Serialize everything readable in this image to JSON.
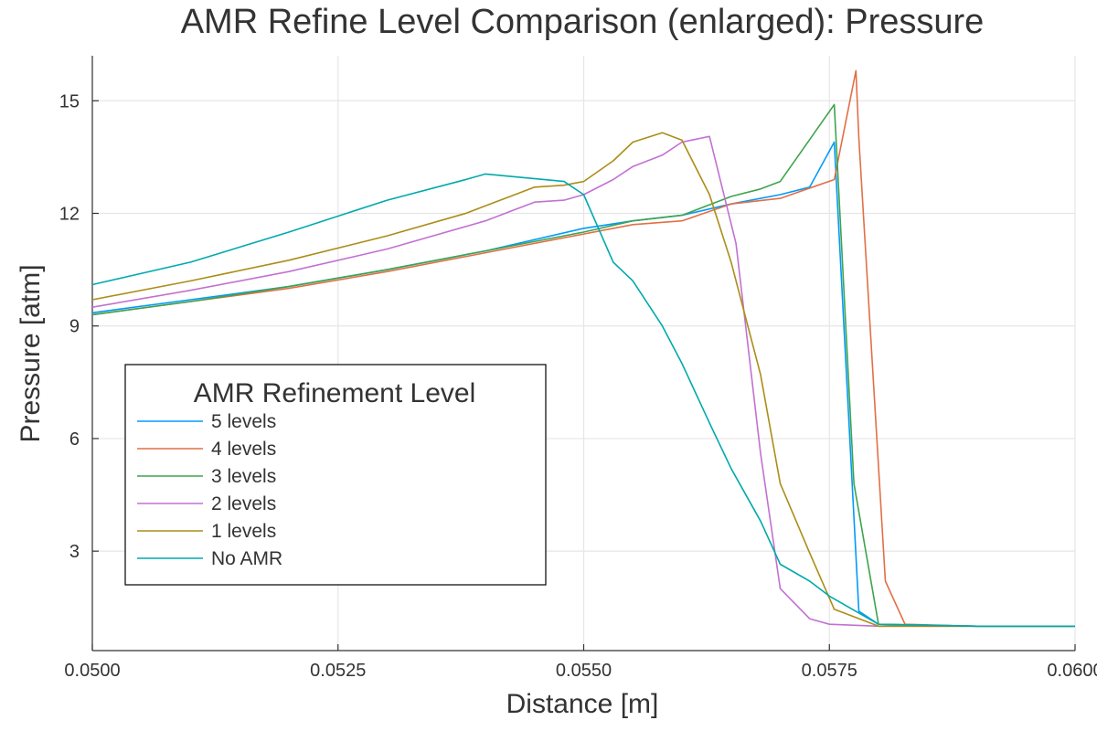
{
  "chart_data": {
    "type": "line",
    "title": "AMR Refine Level Comparison (enlarged): Pressure",
    "xlabel": "Distance [m]",
    "ylabel": "Pressure [atm]",
    "xlim": [
      0.05,
      0.06
    ],
    "ylim": [
      0.35,
      16.2
    ],
    "x_ticks": [
      {
        "value": 0.05,
        "label": "0.0500"
      },
      {
        "value": 0.0525,
        "label": "0.0525"
      },
      {
        "value": 0.055,
        "label": "0.0550"
      },
      {
        "value": 0.0575,
        "label": "0.0575"
      },
      {
        "value": 0.06,
        "label": "0.0600"
      }
    ],
    "y_ticks": [
      {
        "value": 3,
        "label": "3"
      },
      {
        "value": 6,
        "label": "6"
      },
      {
        "value": 9,
        "label": "9"
      },
      {
        "value": 12,
        "label": "12"
      },
      {
        "value": 15,
        "label": "15"
      }
    ],
    "grid": true,
    "legend": {
      "title": "AMR Refinement Level",
      "position": "lower-left"
    },
    "series": [
      {
        "name": "5 levels",
        "color": "#009AFA",
        "points": [
          [
            0.05,
            9.35
          ],
          [
            0.051,
            9.7
          ],
          [
            0.052,
            10.05
          ],
          [
            0.053,
            10.5
          ],
          [
            0.054,
            11.0
          ],
          [
            0.055,
            11.6
          ],
          [
            0.0555,
            11.8
          ],
          [
            0.056,
            11.95
          ],
          [
            0.0565,
            12.25
          ],
          [
            0.057,
            12.5
          ],
          [
            0.0573,
            12.7
          ],
          [
            0.05755,
            13.9
          ],
          [
            0.0578,
            1.4
          ],
          [
            0.058,
            1.05
          ],
          [
            0.059,
            1.0
          ],
          [
            0.06,
            1.0
          ]
        ]
      },
      {
        "name": "4 levels",
        "color": "#E26F46",
        "points": [
          [
            0.05,
            9.3
          ],
          [
            0.051,
            9.65
          ],
          [
            0.052,
            10.0
          ],
          [
            0.053,
            10.45
          ],
          [
            0.054,
            10.95
          ],
          [
            0.055,
            11.45
          ],
          [
            0.0555,
            11.7
          ],
          [
            0.056,
            11.8
          ],
          [
            0.0565,
            12.25
          ],
          [
            0.057,
            12.4
          ],
          [
            0.05755,
            12.9
          ],
          [
            0.05777,
            15.8
          ],
          [
            0.0578,
            14.0
          ],
          [
            0.05807,
            2.2
          ],
          [
            0.05827,
            1.05
          ],
          [
            0.059,
            1.0
          ],
          [
            0.06,
            1.0
          ]
        ]
      },
      {
        "name": "3 levels",
        "color": "#3EA44E",
        "points": [
          [
            0.05,
            9.3
          ],
          [
            0.051,
            9.65
          ],
          [
            0.052,
            10.05
          ],
          [
            0.053,
            10.5
          ],
          [
            0.054,
            11.0
          ],
          [
            0.055,
            11.5
          ],
          [
            0.0555,
            11.8
          ],
          [
            0.056,
            11.95
          ],
          [
            0.0565,
            12.45
          ],
          [
            0.0568,
            12.65
          ],
          [
            0.057,
            12.85
          ],
          [
            0.05755,
            14.9
          ],
          [
            0.05775,
            4.8
          ],
          [
            0.058,
            1.05
          ],
          [
            0.059,
            1.0
          ],
          [
            0.06,
            1.0
          ]
        ]
      },
      {
        "name": "2 levels",
        "color": "#C271D2",
        "points": [
          [
            0.05,
            9.5
          ],
          [
            0.051,
            9.95
          ],
          [
            0.052,
            10.45
          ],
          [
            0.053,
            11.05
          ],
          [
            0.054,
            11.8
          ],
          [
            0.0543,
            12.1
          ],
          [
            0.0545,
            12.3
          ],
          [
            0.0548,
            12.35
          ],
          [
            0.055,
            12.5
          ],
          [
            0.0553,
            12.9
          ],
          [
            0.0555,
            13.25
          ],
          [
            0.0558,
            13.55
          ],
          [
            0.056,
            13.9
          ],
          [
            0.05628,
            14.05
          ],
          [
            0.05655,
            11.2
          ],
          [
            0.0568,
            5.6
          ],
          [
            0.057,
            2.0
          ],
          [
            0.0573,
            1.2
          ],
          [
            0.0575,
            1.05
          ],
          [
            0.058,
            1.0
          ],
          [
            0.06,
            1.0
          ]
        ]
      },
      {
        "name": "1 levels",
        "color": "#AC8D18",
        "points": [
          [
            0.05,
            9.7
          ],
          [
            0.051,
            10.2
          ],
          [
            0.052,
            10.75
          ],
          [
            0.053,
            11.4
          ],
          [
            0.0538,
            12.0
          ],
          [
            0.054,
            12.2
          ],
          [
            0.0543,
            12.5
          ],
          [
            0.0545,
            12.7
          ],
          [
            0.0548,
            12.75
          ],
          [
            0.055,
            12.85
          ],
          [
            0.0553,
            13.4
          ],
          [
            0.0555,
            13.9
          ],
          [
            0.0558,
            14.15
          ],
          [
            0.056,
            13.95
          ],
          [
            0.05628,
            12.5
          ],
          [
            0.0565,
            10.7
          ],
          [
            0.0568,
            7.7
          ],
          [
            0.057,
            4.8
          ],
          [
            0.0573,
            2.95
          ],
          [
            0.05755,
            1.45
          ],
          [
            0.058,
            1.0
          ],
          [
            0.06,
            1.0
          ]
        ]
      },
      {
        "name": "No AMR",
        "color": "#00A9AD",
        "points": [
          [
            0.05,
            10.1
          ],
          [
            0.051,
            10.7
          ],
          [
            0.052,
            11.5
          ],
          [
            0.053,
            12.35
          ],
          [
            0.0538,
            12.9
          ],
          [
            0.054,
            13.05
          ],
          [
            0.0548,
            12.85
          ],
          [
            0.055,
            12.5
          ],
          [
            0.0553,
            10.7
          ],
          [
            0.0555,
            10.2
          ],
          [
            0.0558,
            9.0
          ],
          [
            0.056,
            8.0
          ],
          [
            0.0563,
            6.3
          ],
          [
            0.0565,
            5.2
          ],
          [
            0.0568,
            3.8
          ],
          [
            0.057,
            2.65
          ],
          [
            0.0573,
            2.2
          ],
          [
            0.0575,
            1.8
          ],
          [
            0.058,
            1.05
          ],
          [
            0.059,
            1.0
          ],
          [
            0.06,
            1.0
          ]
        ]
      }
    ]
  }
}
